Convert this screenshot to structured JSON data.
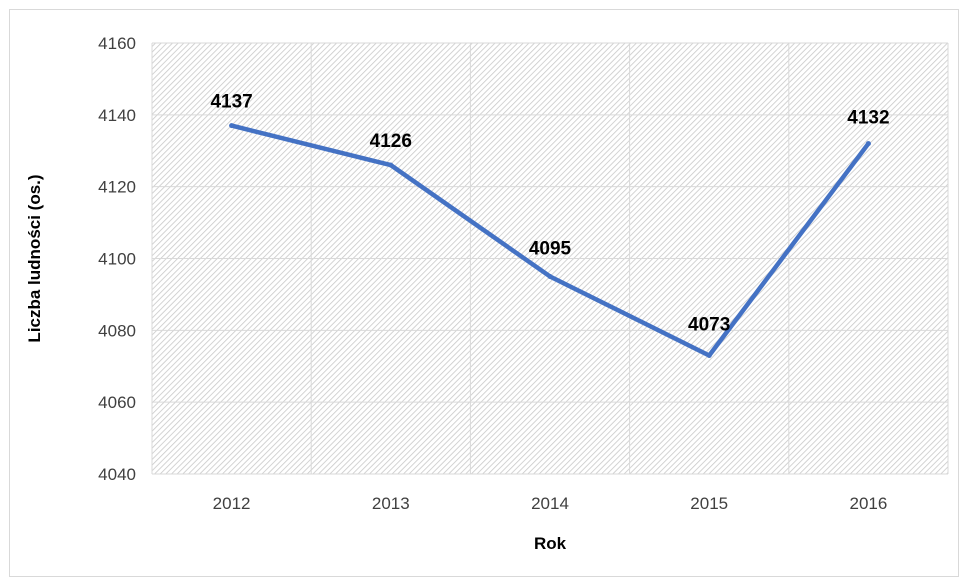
{
  "chart_data": {
    "type": "line",
    "title": "",
    "xlabel": "Rok",
    "ylabel": "Liczba ludności (os.)",
    "categories": [
      "2012",
      "2013",
      "2014",
      "2015",
      "2016"
    ],
    "series": [
      {
        "values": [
          4137,
          4126,
          4095,
          4073,
          4132
        ],
        "color": "#4472c4"
      }
    ],
    "data_labels": [
      "4137",
      "4126",
      "4095",
      "4073",
      "4132"
    ],
    "ylim": [
      4040,
      4160
    ],
    "yticks": [
      "4040",
      "4060",
      "4080",
      "4100",
      "4120",
      "4140",
      "4160"
    ],
    "grid": true,
    "plot_fill": "hatched",
    "legend": "none"
  }
}
